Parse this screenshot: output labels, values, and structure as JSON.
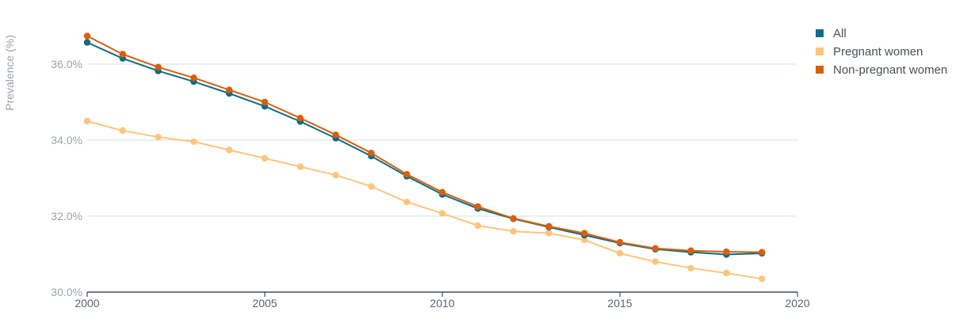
{
  "chart_data": {
    "type": "line",
    "title": "",
    "xlabel": "",
    "ylabel": "Prevalence (%)",
    "xlim": [
      2000,
      2020
    ],
    "ylim": [
      30,
      37
    ],
    "x_ticks": [
      2000,
      2005,
      2010,
      2015,
      2020
    ],
    "x_tick_labels": [
      "2000",
      "2005",
      "2010",
      "2015",
      "2020"
    ],
    "y_ticks": [
      30,
      32,
      34,
      36
    ],
    "y_tick_labels": [
      "30.0%",
      "32.0%",
      "34.0%",
      "36.0%"
    ],
    "grid": true,
    "legend_position": "top-right",
    "x": [
      2000,
      2001,
      2002,
      2003,
      2004,
      2005,
      2006,
      2007,
      2008,
      2009,
      2010,
      2011,
      2012,
      2013,
      2014,
      2015,
      2016,
      2017,
      2018,
      2019
    ],
    "series": [
      {
        "name": "Pregnant women",
        "color": "#fcc57c",
        "values": [
          34.5,
          34.25,
          34.08,
          33.96,
          33.74,
          33.52,
          33.3,
          33.08,
          32.78,
          32.37,
          32.07,
          31.75,
          31.6,
          31.55,
          31.37,
          31.02,
          30.8,
          30.63,
          30.5,
          30.35
        ]
      },
      {
        "name": "All",
        "color": "#0f6c84",
        "values": [
          36.57,
          36.15,
          35.82,
          35.54,
          35.23,
          34.89,
          34.49,
          34.05,
          33.58,
          33.05,
          32.57,
          32.2,
          31.93,
          31.71,
          31.5,
          31.29,
          31.13,
          31.05,
          30.99,
          31.02
        ]
      },
      {
        "name": "Non-pregnant women",
        "color": "#d95f0e",
        "values": [
          36.74,
          36.26,
          35.92,
          35.64,
          35.32,
          35.0,
          34.58,
          34.14,
          33.66,
          33.1,
          32.63,
          32.25,
          31.94,
          31.73,
          31.55,
          31.31,
          31.15,
          31.09,
          31.06,
          31.05
        ]
      }
    ],
    "legend": [
      {
        "label": "All",
        "color": "#0f6c84"
      },
      {
        "label": "Pregnant women",
        "color": "#fcc57c"
      },
      {
        "label": "Non-pregnant women",
        "color": "#d95f0e"
      }
    ]
  },
  "colors": {
    "grid": "#cfe5e2",
    "axis": "#1d2b36"
  }
}
